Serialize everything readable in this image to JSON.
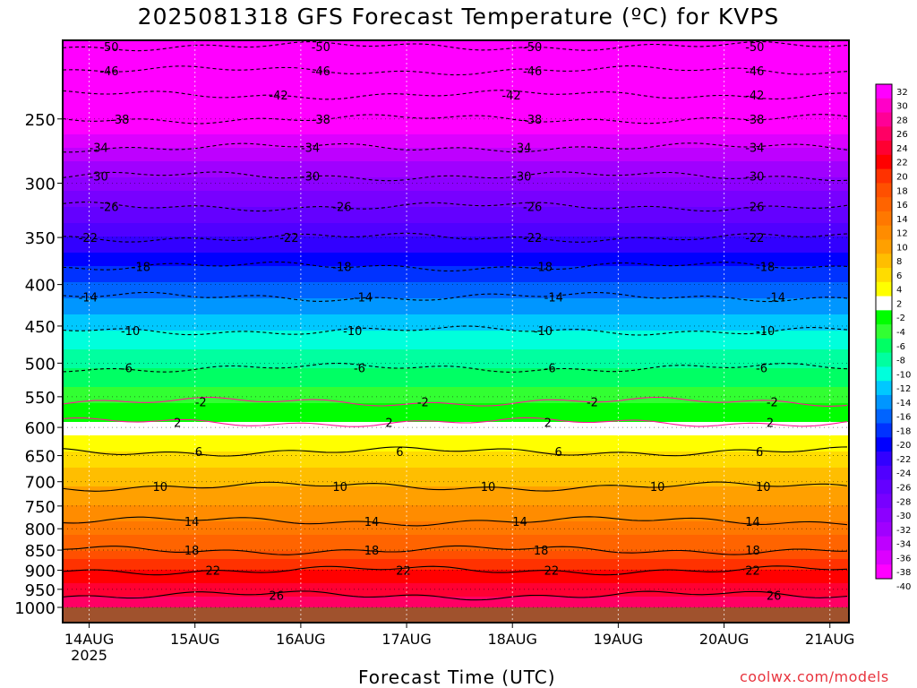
{
  "chart_data": {
    "type": "heatmap",
    "title": "2025081318 GFS Forecast Temperature (ºC) for KVPS",
    "xlabel": "Forecast Time (UTC)",
    "ylabel": "",
    "x_ticks": [
      {
        "label": "14AUG",
        "sub": "2025",
        "day": 0
      },
      {
        "label": "15AUG",
        "sub": "",
        "day": 1
      },
      {
        "label": "16AUG",
        "sub": "",
        "day": 2
      },
      {
        "label": "17AUG",
        "sub": "",
        "day": 3
      },
      {
        "label": "18AUG",
        "sub": "",
        "day": 4
      },
      {
        "label": "19AUG",
        "sub": "",
        "day": 5
      },
      {
        "label": "20AUG",
        "sub": "",
        "day": 6
      },
      {
        "label": "21AUG",
        "sub": "",
        "day": 7
      }
    ],
    "xlim_days": [
      -0.25,
      7.18
    ],
    "y_ticks": [
      250,
      300,
      350,
      400,
      450,
      500,
      550,
      600,
      650,
      700,
      750,
      800,
      850,
      900,
      950,
      1000
    ],
    "ylim_hpa": [
      200,
      1000
    ],
    "y_scale": "log-pressure",
    "colorbar": {
      "labels": [
        "32",
        "30",
        "28",
        "26",
        "24",
        "22",
        "20",
        "18",
        "16",
        "14",
        "12",
        "10",
        "8",
        "6",
        "4",
        "2",
        "-2",
        "-4",
        "-6",
        "-8",
        "-10",
        "-12",
        "-14",
        "-16",
        "-18",
        "-20",
        "-22",
        "-24",
        "-26",
        "-28",
        "-30",
        "-32",
        "-34",
        "-36",
        "-38",
        "-40"
      ],
      "colors": [
        "#ff00ff",
        "#ff00c8",
        "#ff0096",
        "#ff0064",
        "#ff0032",
        "#ff0000",
        "#ff3200",
        "#ff5000",
        "#ff6400",
        "#ff7800",
        "#ff8c00",
        "#ffa000",
        "#ffbe00",
        "#ffdc00",
        "#ffff00",
        "#ffffff",
        "#00ff00",
        "#32ff32",
        "#00ff64",
        "#00ffa0",
        "#00ffdc",
        "#00c8ff",
        "#0096ff",
        "#0064ff",
        "#0032ff",
        "#0000ff",
        "#3200ff",
        "#5000ff",
        "#6400ff",
        "#7800ff",
        "#8c00ff",
        "#a000ff",
        "#be00ff",
        "#dc00ff",
        "#ff00ff"
      ]
    },
    "temperature_profile": [
      {
        "p": 1000,
        "t": 28
      },
      {
        "p": 950,
        "t": 25
      },
      {
        "p": 900,
        "t": 22
      },
      {
        "p": 850,
        "t": 18
      },
      {
        "p": 800,
        "t": 15
      },
      {
        "p": 750,
        "t": 12
      },
      {
        "p": 700,
        "t": 9.5
      },
      {
        "p": 650,
        "t": 6.5
      },
      {
        "p": 600,
        "t": 3
      },
      {
        "p": 575,
        "t": 0
      },
      {
        "p": 550,
        "t": -3
      },
      {
        "p": 500,
        "t": -6.5
      },
      {
        "p": 450,
        "t": -10.5
      },
      {
        "p": 400,
        "t": -15.5
      },
      {
        "p": 350,
        "t": -22
      },
      {
        "p": 300,
        "t": -29
      },
      {
        "p": 250,
        "t": -38
      },
      {
        "p": 200,
        "t": -51
      }
    ],
    "contour_labels": [
      {
        "text": "-50",
        "x": [
          0.1,
          2.1,
          4.1,
          6.2
        ]
      },
      {
        "text": "-46",
        "x": [
          0.1,
          2.1,
          4.1,
          6.2
        ]
      },
      {
        "text": "-42",
        "x": [
          1.7,
          3.9,
          6.2
        ]
      },
      {
        "text": "-38",
        "x": [
          0.2,
          2.1,
          4.1,
          6.2
        ]
      },
      {
        "text": "-34",
        "x": [
          0.0,
          2.0,
          4.0,
          6.2
        ]
      },
      {
        "text": "-30",
        "x": [
          0.0,
          2.0,
          4.0,
          6.2
        ]
      },
      {
        "text": "-26",
        "x": [
          0.1,
          2.3,
          4.1,
          6.2
        ]
      },
      {
        "text": "-22",
        "x": [
          -0.1,
          1.8,
          4.1,
          6.2
        ]
      },
      {
        "text": "-18",
        "x": [
          0.4,
          2.3,
          4.2,
          6.3
        ]
      },
      {
        "text": "-14",
        "x": [
          -0.1,
          2.5,
          4.3,
          6.4
        ]
      },
      {
        "text": "-10",
        "x": [
          0.3,
          2.4,
          4.2,
          6.3
        ]
      },
      {
        "text": "-6",
        "x": [
          0.3,
          2.5,
          4.3,
          6.3
        ]
      },
      {
        "text": "-2",
        "x": [
          1.0,
          3.1,
          4.7,
          6.4
        ]
      },
      {
        "text": "2",
        "x": [
          0.8,
          2.8,
          4.3,
          6.4
        ]
      },
      {
        "text": "6",
        "x": [
          1.0,
          2.9,
          4.4,
          6.3
        ]
      },
      {
        "text": "10",
        "x": [
          0.6,
          2.3,
          3.7,
          5.3,
          6.3
        ]
      },
      {
        "text": "14",
        "x": [
          0.9,
          2.6,
          4.0,
          6.2
        ]
      },
      {
        "text": "18",
        "x": [
          0.9,
          2.6,
          4.2,
          6.2
        ]
      },
      {
        "text": "22",
        "x": [
          1.1,
          2.9,
          4.3,
          6.2
        ]
      },
      {
        "text": "26",
        "x": [
          1.7,
          6.4
        ]
      }
    ],
    "grid": true,
    "legend": "right (colorbar)",
    "colorbar_note": ""
  },
  "watermark": "coolwx.com/models"
}
